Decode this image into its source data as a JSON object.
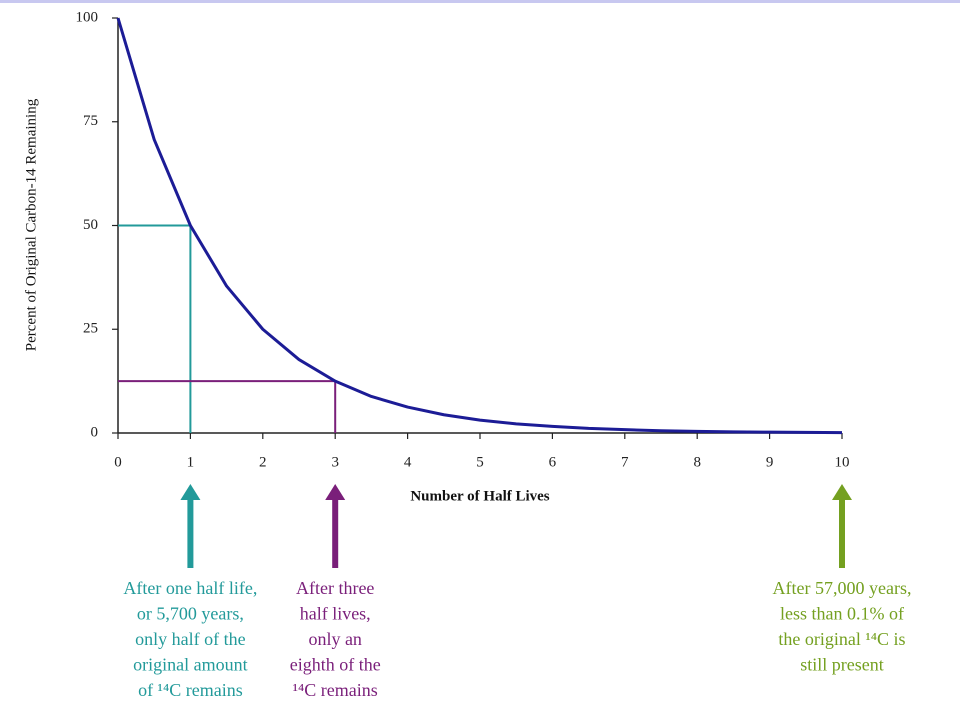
{
  "chart_data": {
    "type": "line",
    "y_label": "Percent of Original Carbon-14 Remaining",
    "x_label": "Number of Half Lives",
    "x": [
      0,
      0.5,
      1,
      1.5,
      2,
      2.5,
      3,
      3.5,
      4,
      4.5,
      5,
      5.5,
      6,
      6.5,
      7,
      7.5,
      8,
      8.5,
      9,
      9.5,
      10
    ],
    "series": [
      {
        "color": "#1c1c96",
        "values": [
          100,
          70.7,
          50,
          35.4,
          25,
          17.7,
          12.5,
          8.8,
          6.25,
          4.4,
          3.1,
          2.2,
          1.6,
          1.1,
          0.8,
          0.55,
          0.4,
          0.28,
          0.2,
          0.14,
          0.1
        ]
      }
    ],
    "xlim": [
      0,
      10
    ],
    "ylim": [
      0,
      100
    ],
    "xticks": [
      0,
      1,
      2,
      3,
      4,
      5,
      6,
      7,
      8,
      9,
      10
    ],
    "yticks": [
      0,
      25,
      50,
      75,
      100
    ],
    "annotations": [
      {
        "x": 1,
        "y": 50,
        "color": "#229a9a",
        "lines": [
          "After one half life,",
          "or 5,700 years,",
          "only half of the",
          "original amount",
          "of ¹⁴C remains"
        ]
      },
      {
        "x": 3,
        "y": 12.5,
        "color": "#7a1f7a",
        "lines": [
          "After three",
          "half lives,",
          "only an",
          "eighth of the",
          "¹⁴C remains"
        ]
      },
      {
        "x": 10,
        "color": "#74a020",
        "lines": [
          "After 57,000 years,",
          "less than 0.1% of",
          "the original ¹⁴C is",
          "still present"
        ]
      }
    ]
  }
}
